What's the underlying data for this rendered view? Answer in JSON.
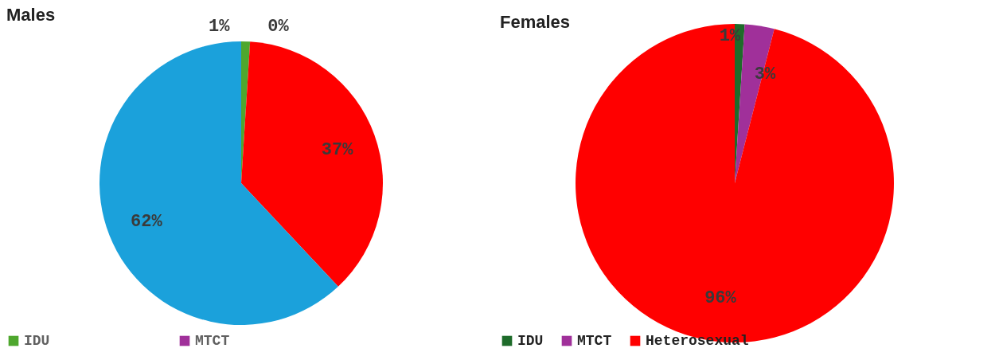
{
  "chart_data": [
    {
      "type": "pie",
      "title": "Males",
      "categories": [
        "IDU",
        "MTCT",
        null,
        null
      ],
      "values": [
        1,
        0,
        37,
        62
      ],
      "colors": [
        "#4ea72e",
        "#a0309a",
        "#ff0000",
        "#1ba1db"
      ],
      "value_labels": [
        "1%",
        "0%",
        "37%",
        "62%"
      ],
      "legend": "bottom"
    },
    {
      "type": "pie",
      "title": "Females",
      "categories": [
        "IDU",
        "MTCT",
        "Heterosexual"
      ],
      "values": [
        1,
        3,
        96
      ],
      "colors": [
        "#1e6b2a",
        "#a0309a",
        "#ff0000"
      ],
      "value_labels": [
        "1%",
        "3%",
        "96%"
      ],
      "legend": "bottom"
    }
  ]
}
